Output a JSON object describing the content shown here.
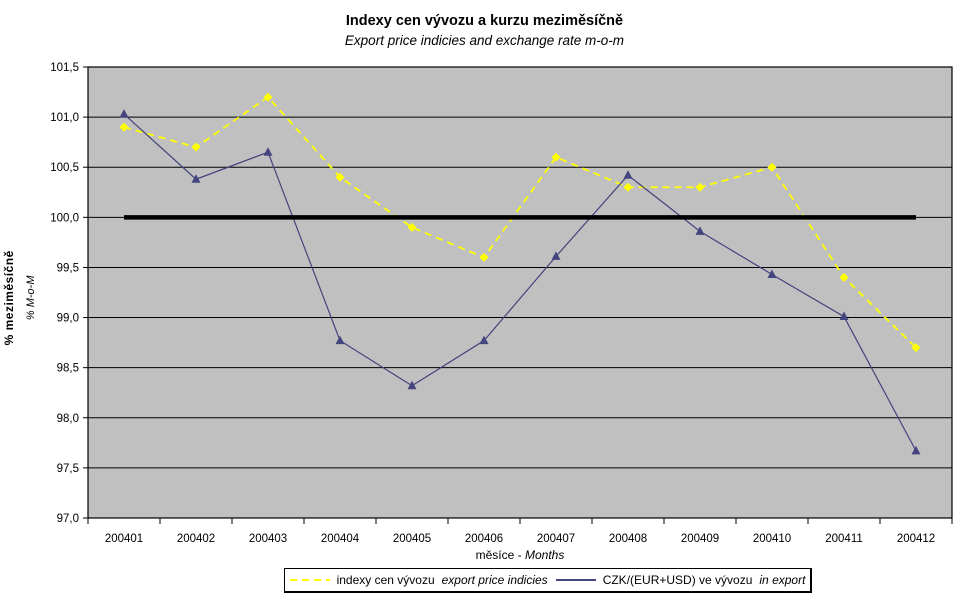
{
  "chart_data": {
    "type": "line",
    "title": "Indexy cen vývozu a kurzu meziměsíčně",
    "subtitle": "Export price indicies and exchange rate m-o-m",
    "xlabel": "měsíce -",
    "xlabel_en": "Months",
    "ylabel": "% meziměsíčně",
    "ylabel_en": "% M-o-M",
    "categories": [
      "200401",
      "200402",
      "200403",
      "200404",
      "200405",
      "200406",
      "200407",
      "200408",
      "200409",
      "200410",
      "200411",
      "200412"
    ],
    "ylim": [
      97.0,
      101.5
    ],
    "ytick_values": [
      101.5,
      101.0,
      100.5,
      100.0,
      99.5,
      99.0,
      98.5,
      98.0,
      97.5,
      97.0
    ],
    "ytick_labels": [
      "101,5",
      "101,0",
      "100,5",
      "100,0",
      "99,5",
      "99,0",
      "98,5",
      "98,0",
      "97,5",
      "97,0"
    ],
    "grid": "horizontal",
    "legend_position": "bottom",
    "series": [
      {
        "name": "indexy cen vývozu",
        "name_en": "export price indicies",
        "color": "#FFFF00",
        "style": "dashed",
        "marker": "diamond",
        "values": [
          100.9,
          100.7,
          101.2,
          100.4,
          99.9,
          99.6,
          100.6,
          100.3,
          100.3,
          100.5,
          99.4,
          98.7
        ]
      },
      {
        "name": "CZK/(EUR+USD) ve vývozu",
        "name_en": "in export",
        "color": "#44447E",
        "style": "solid",
        "marker": "triangle",
        "values": [
          101.03,
          100.38,
          100.65,
          98.77,
          98.32,
          98.77,
          99.61,
          100.42,
          99.86,
          99.43,
          99.01,
          97.67
        ]
      }
    ],
    "baseline": {
      "value": 100.0,
      "color": "#000000",
      "thickness": 4.5
    },
    "colors": {
      "plot_bg": "#C0C0C0",
      "grid": "#000000",
      "axis": "#000000",
      "page_bg": "#FFFFFF"
    }
  }
}
